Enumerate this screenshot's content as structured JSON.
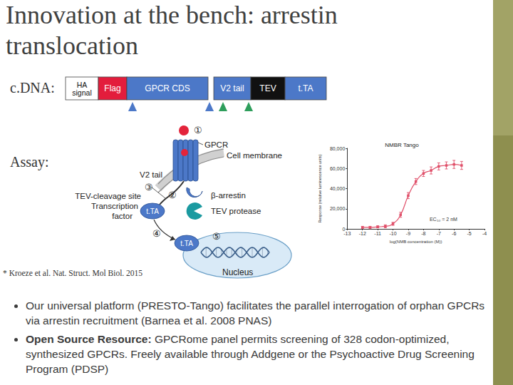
{
  "title": "Innovation at the bench: arrestin translocation",
  "cdna": {
    "label": "c.DNA:",
    "segments": [
      {
        "lines": [
          "HA",
          "signal"
        ],
        "color": "#ffffff"
      },
      {
        "lines": [
          "Flag"
        ],
        "color": "#e31d3c"
      },
      {
        "lines": [
          "GPCR CDS"
        ],
        "color": "#4c78c8"
      },
      {
        "lines": [
          "V2 tail"
        ],
        "color": "#4c78c8"
      },
      {
        "lines": [
          "TEV"
        ],
        "color": "#111111"
      },
      {
        "lines": [
          "t.TA"
        ],
        "color": "#4c78c8"
      }
    ]
  },
  "assay": {
    "label": "Assay:",
    "step1": "①",
    "step2": "②",
    "step3": "③",
    "step4": "④",
    "step5": "⑤",
    "gpcr": "GPCR",
    "membrane": "Cell membrane",
    "v2_tail": "V2 tail",
    "cleavage_site": "TEV-cleavage site",
    "transcription_factor": [
      "Transcription",
      "factor"
    ],
    "tta": "t.TA",
    "arrestin": "β-arrestin",
    "protease": "TEV protease",
    "nucleus": "Nucleus"
  },
  "chart_data": {
    "type": "line",
    "title": "NMBR Tango",
    "xlabel": "log(NMB concentration (M))",
    "ylabel": "Response (relative luminescence units)",
    "annotation": {
      "text": "EC₅₀ = 2 nM",
      "x": -7.6,
      "y": 12000
    },
    "x": [
      -12,
      -11.5,
      -11,
      -10.5,
      -10,
      -9.5,
      -9,
      -8.5,
      -8,
      -7.5,
      -7,
      -6.5,
      -6,
      -5.5
    ],
    "values": [
      1500,
      1500,
      2000,
      2500,
      5000,
      14000,
      33000,
      47000,
      55000,
      58000,
      62000,
      63000,
      64000,
      63000
    ],
    "errors": [
      1000,
      1000,
      1000,
      1500,
      1500,
      2500,
      3000,
      3000,
      3000,
      3500,
      3500,
      3500,
      4000,
      4000
    ],
    "color": "#e0506a",
    "marker": "square",
    "line_style": "solid",
    "xlim": [
      -13,
      -4
    ],
    "xticks": [
      -13,
      -12,
      -11,
      -10,
      -9,
      -8,
      -7,
      -6,
      -5,
      -4
    ],
    "ylim": [
      0,
      80000
    ],
    "yticks": [
      0,
      {
        "value": 20000,
        "label": "20,000"
      },
      {
        "value": 40000,
        "label": "40,000"
      },
      {
        "value": 60000,
        "label": "60,000"
      },
      {
        "value": 80000,
        "label": "80,000"
      }
    ],
    "grid": false
  },
  "citation": "* Kroeze et al. Nat. Struct. Mol Biol. 2015",
  "bullets": [
    {
      "text": "Our universal platform (PRESTO-Tango) facilitates the parallel interrogation of orphan GPCRs via arrestin recruitment (Barnea et al. 2008 PNAS)"
    },
    {
      "bold": "Open Source Resource:",
      "text": "GPCRome panel permits screening of 328 codon-optimized, synthesized GPCRs. Freely available through Addgene or the Psychoactive Drug Screening Program (PDSP)"
    }
  ]
}
